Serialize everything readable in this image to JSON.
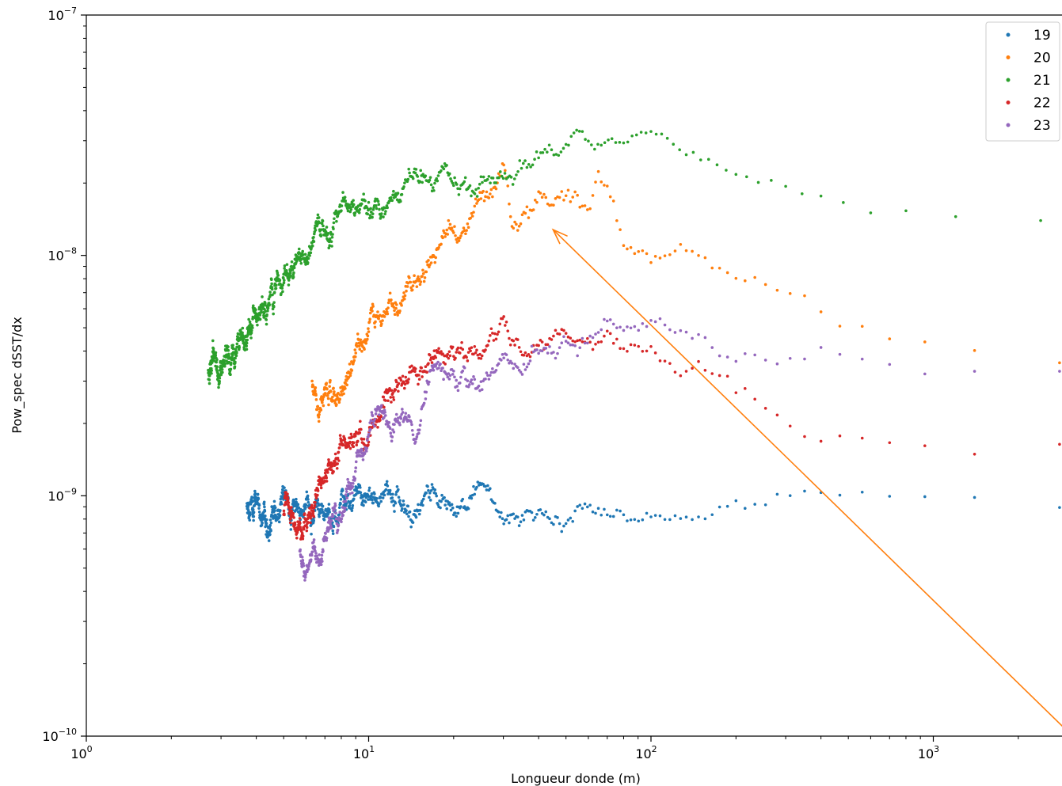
{
  "chart_data": {
    "type": "scatter",
    "xlabel": "Longueur donde (m)",
    "ylabel": "Pow_spec dSST/dx",
    "xscale": "log",
    "yscale": "log",
    "xlim": [
      1,
      2800
    ],
    "ylim": [
      1e-10,
      1e-07
    ],
    "grid": false,
    "legend_position": "top-right",
    "x_ticks": [
      {
        "value": 1,
        "base": "10",
        "exp": "0"
      },
      {
        "value": 10,
        "base": "10",
        "exp": "1"
      },
      {
        "value": 100,
        "base": "10",
        "exp": "2"
      },
      {
        "value": 1000,
        "base": "10",
        "exp": "3"
      }
    ],
    "y_ticks": [
      {
        "value": 1e-10,
        "base": "10",
        "exp": "−10"
      },
      {
        "value": 1e-09,
        "base": "10",
        "exp": "−9"
      },
      {
        "value": 1e-08,
        "base": "10",
        "exp": "−8"
      },
      {
        "value": 1e-07,
        "base": "10",
        "exp": "−7"
      }
    ],
    "series": [
      {
        "name": "19",
        "color": "#1f77b4",
        "x_range": [
          3.7,
          2800
        ],
        "points": [
          [
            3.7,
            8.6e-10
          ],
          [
            4.5,
            7.8e-10
          ],
          [
            5.0,
            9.5e-10
          ],
          [
            6,
            8.5e-10
          ],
          [
            7,
            9.3e-10
          ],
          [
            8,
            8.3e-10
          ],
          [
            10,
            9.7e-10
          ],
          [
            12,
            9.6e-10
          ],
          [
            15,
            9.2e-10
          ],
          [
            18,
            9.4e-10
          ],
          [
            22,
            8.8e-10
          ],
          [
            25,
            1.1e-09
          ],
          [
            28,
            9.6e-10
          ],
          [
            30,
            8.6e-10
          ],
          [
            40,
            8.5e-10
          ],
          [
            50,
            8.3e-10
          ],
          [
            60,
            8.9e-10
          ],
          [
            70,
            8.4e-10
          ],
          [
            80,
            8e-10
          ],
          [
            90,
            7.8e-10
          ],
          [
            100,
            7.4e-10
          ],
          [
            120,
            7.3e-10
          ],
          [
            140,
            7.4e-10
          ],
          [
            180,
            8.6e-10
          ],
          [
            250,
            8.9e-10
          ],
          [
            300,
            9.3e-10
          ],
          [
            350,
            9.8e-10
          ],
          [
            450,
            9.6e-10
          ],
          [
            600,
            9.9e-10
          ],
          [
            800,
            9.4e-10
          ],
          [
            1000,
            9.3e-10
          ],
          [
            1500,
            9.2e-10
          ],
          [
            2000,
            9.1e-10
          ],
          [
            2800,
            8.9e-10
          ]
        ]
      },
      {
        "name": "20",
        "color": "#ff7f0e",
        "x_range": [
          6.3,
          2800
        ],
        "points": [
          [
            6.3,
            3.3e-09
          ],
          [
            6.6,
            2.1e-09
          ],
          [
            7,
            2.5e-09
          ],
          [
            8,
            2.6e-09
          ],
          [
            8.5,
            3.3e-09
          ],
          [
            9,
            4.2e-09
          ],
          [
            10,
            5.2e-09
          ],
          [
            12,
            6.3e-09
          ],
          [
            14,
            7.7e-09
          ],
          [
            16,
            8.5e-09
          ],
          [
            18,
            1.1e-08
          ],
          [
            20,
            1.45e-08
          ],
          [
            22,
            1.3e-08
          ],
          [
            25,
            1.75e-08
          ],
          [
            28,
            1.7e-08
          ],
          [
            30,
            2.3e-08
          ],
          [
            32,
            1.4e-08
          ],
          [
            35,
            1.55e-08
          ],
          [
            40,
            1.7e-08
          ],
          [
            45,
            1.75e-08
          ],
          [
            50,
            1.7e-08
          ],
          [
            55,
            1.6e-08
          ],
          [
            60,
            1.45e-08
          ],
          [
            65,
            2.1e-08
          ],
          [
            70,
            1.8e-08
          ],
          [
            75,
            1.5e-08
          ],
          [
            80,
            1.15e-08
          ],
          [
            90,
            1.05e-08
          ],
          [
            100,
            9.5e-09
          ],
          [
            120,
            1.15e-08
          ],
          [
            130,
            1.25e-08
          ],
          [
            150,
            1.05e-08
          ],
          [
            200,
            9.2e-09
          ],
          [
            250,
            8e-09
          ],
          [
            300,
            6.8e-09
          ],
          [
            400,
            6e-09
          ],
          [
            500,
            5.5e-09
          ],
          [
            700,
            4.9e-09
          ],
          [
            1000,
            4.4e-09
          ],
          [
            1500,
            4.3e-09
          ],
          [
            2000,
            3.9e-09
          ],
          [
            2800,
            3.7e-09
          ]
        ]
      },
      {
        "name": "21",
        "color": "#2ca02c",
        "x_range": [
          2.7,
          2400
        ],
        "points": [
          [
            2.7,
            2.9e-09
          ],
          [
            2.8,
            4e-09
          ],
          [
            3.0,
            3.2e-09
          ],
          [
            3.3,
            4.2e-09
          ],
          [
            3.6,
            4.8e-09
          ],
          [
            4.0,
            5.2e-09
          ],
          [
            4.5,
            6.6e-09
          ],
          [
            5,
            8e-09
          ],
          [
            5.5,
            9.5e-09
          ],
          [
            6,
            1.1e-08
          ],
          [
            6.5,
            1.3e-08
          ],
          [
            7,
            1.35e-08
          ],
          [
            8,
            1.5e-08
          ],
          [
            9,
            1.65e-08
          ],
          [
            10,
            1.7e-08
          ],
          [
            11,
            1.6e-08
          ],
          [
            12,
            1.55e-08
          ],
          [
            14,
            1.95e-08
          ],
          [
            16,
            2.1e-08
          ],
          [
            20,
            1.95e-08
          ],
          [
            25,
            1.85e-08
          ],
          [
            30,
            2e-08
          ],
          [
            35,
            2.1e-08
          ],
          [
            40,
            2.4e-08
          ],
          [
            50,
            2.6e-08
          ],
          [
            55,
            2.7e-08
          ],
          [
            60,
            2.5e-08
          ],
          [
            70,
            2.4e-08
          ],
          [
            80,
            2.45e-08
          ],
          [
            100,
            2.55e-08
          ],
          [
            120,
            2.5e-08
          ],
          [
            150,
            2.3e-08
          ],
          [
            200,
            2.2e-08
          ],
          [
            250,
            2.15e-08
          ],
          [
            300,
            1.85e-08
          ],
          [
            400,
            1.7e-08
          ],
          [
            500,
            1.6e-08
          ],
          [
            700,
            1.5e-08
          ],
          [
            1000,
            1.45e-08
          ],
          [
            1500,
            1.4e-08
          ],
          [
            2000,
            1.38e-08
          ],
          [
            2400,
            1.35e-08
          ]
        ]
      },
      {
        "name": "22",
        "color": "#d62728",
        "x_range": [
          5.0,
          2800
        ],
        "points": [
          [
            5.0,
            9.5e-10
          ],
          [
            5.5,
            7.5e-10
          ],
          [
            6,
            7.8e-10
          ],
          [
            6.5,
            1e-09
          ],
          [
            7,
            1.2e-09
          ],
          [
            8,
            1.5e-09
          ],
          [
            9,
            1.8e-09
          ],
          [
            10,
            1.9e-09
          ],
          [
            11,
            2.3e-09
          ],
          [
            12,
            2.5e-09
          ],
          [
            14,
            3e-09
          ],
          [
            16,
            3.5e-09
          ],
          [
            18,
            3.9e-09
          ],
          [
            20,
            4.2e-09
          ],
          [
            25,
            4.4e-09
          ],
          [
            30,
            5e-09
          ],
          [
            35,
            4.2e-09
          ],
          [
            40,
            4.6e-09
          ],
          [
            45,
            4.8e-09
          ],
          [
            50,
            5e-09
          ],
          [
            55,
            4.6e-09
          ],
          [
            60,
            4.2e-09
          ],
          [
            70,
            4.6e-09
          ],
          [
            80,
            4e-09
          ],
          [
            100,
            3.6e-09
          ],
          [
            130,
            3.1e-09
          ],
          [
            150,
            3e-09
          ],
          [
            180,
            3e-09
          ],
          [
            200,
            2.6e-09
          ],
          [
            250,
            2.3e-09
          ],
          [
            300,
            2e-09
          ],
          [
            400,
            1.8e-09
          ],
          [
            500,
            1.75e-09
          ],
          [
            700,
            1.6e-09
          ],
          [
            1000,
            1.45e-09
          ],
          [
            1200,
            1.4e-09
          ],
          [
            1500,
            1.4e-09
          ],
          [
            2000,
            1.25e-09
          ],
          [
            2400,
            1.5e-09
          ],
          [
            2800,
            1.5e-09
          ]
        ]
      },
      {
        "name": "23",
        "color": "#9467bd",
        "x_range": [
          5.7,
          2800
        ],
        "points": [
          [
            5.7,
            6e-10
          ],
          [
            6.0,
            5e-10
          ],
          [
            6.5,
            5.5e-10
          ],
          [
            7,
            7e-10
          ],
          [
            8,
            9e-10
          ],
          [
            9,
            1.3e-09
          ],
          [
            10,
            1.6e-09
          ],
          [
            11,
            2.3e-09
          ],
          [
            12,
            1.8e-09
          ],
          [
            14,
            2.2e-09
          ],
          [
            15,
            1.8e-09
          ],
          [
            16,
            2.9e-09
          ],
          [
            18,
            3.5e-09
          ],
          [
            20,
            3.6e-09
          ],
          [
            22,
            3.5e-09
          ],
          [
            25,
            3.3e-09
          ],
          [
            28,
            3.9e-09
          ],
          [
            30,
            4.3e-09
          ],
          [
            35,
            3e-09
          ],
          [
            40,
            4e-09
          ],
          [
            45,
            3.8e-09
          ],
          [
            50,
            3.9e-09
          ],
          [
            60,
            3.8e-09
          ],
          [
            70,
            4.5e-09
          ],
          [
            80,
            4.8e-09
          ],
          [
            100,
            5e-09
          ],
          [
            120,
            5.2e-09
          ],
          [
            150,
            4.5e-09
          ],
          [
            200,
            3.6e-09
          ],
          [
            300,
            4e-09
          ],
          [
            400,
            4.1e-09
          ],
          [
            600,
            4e-09
          ],
          [
            800,
            3.7e-09
          ],
          [
            1000,
            3.5e-09
          ],
          [
            1500,
            3.5e-09
          ],
          [
            2000,
            3.4e-09
          ],
          [
            2800,
            3.3e-09
          ]
        ]
      }
    ],
    "annotation": {
      "type": "arrow",
      "color": "#ff7f0e",
      "from": [
        2800,
        7.8e-11
      ],
      "to": [
        45,
        1.28e-08
      ]
    }
  }
}
